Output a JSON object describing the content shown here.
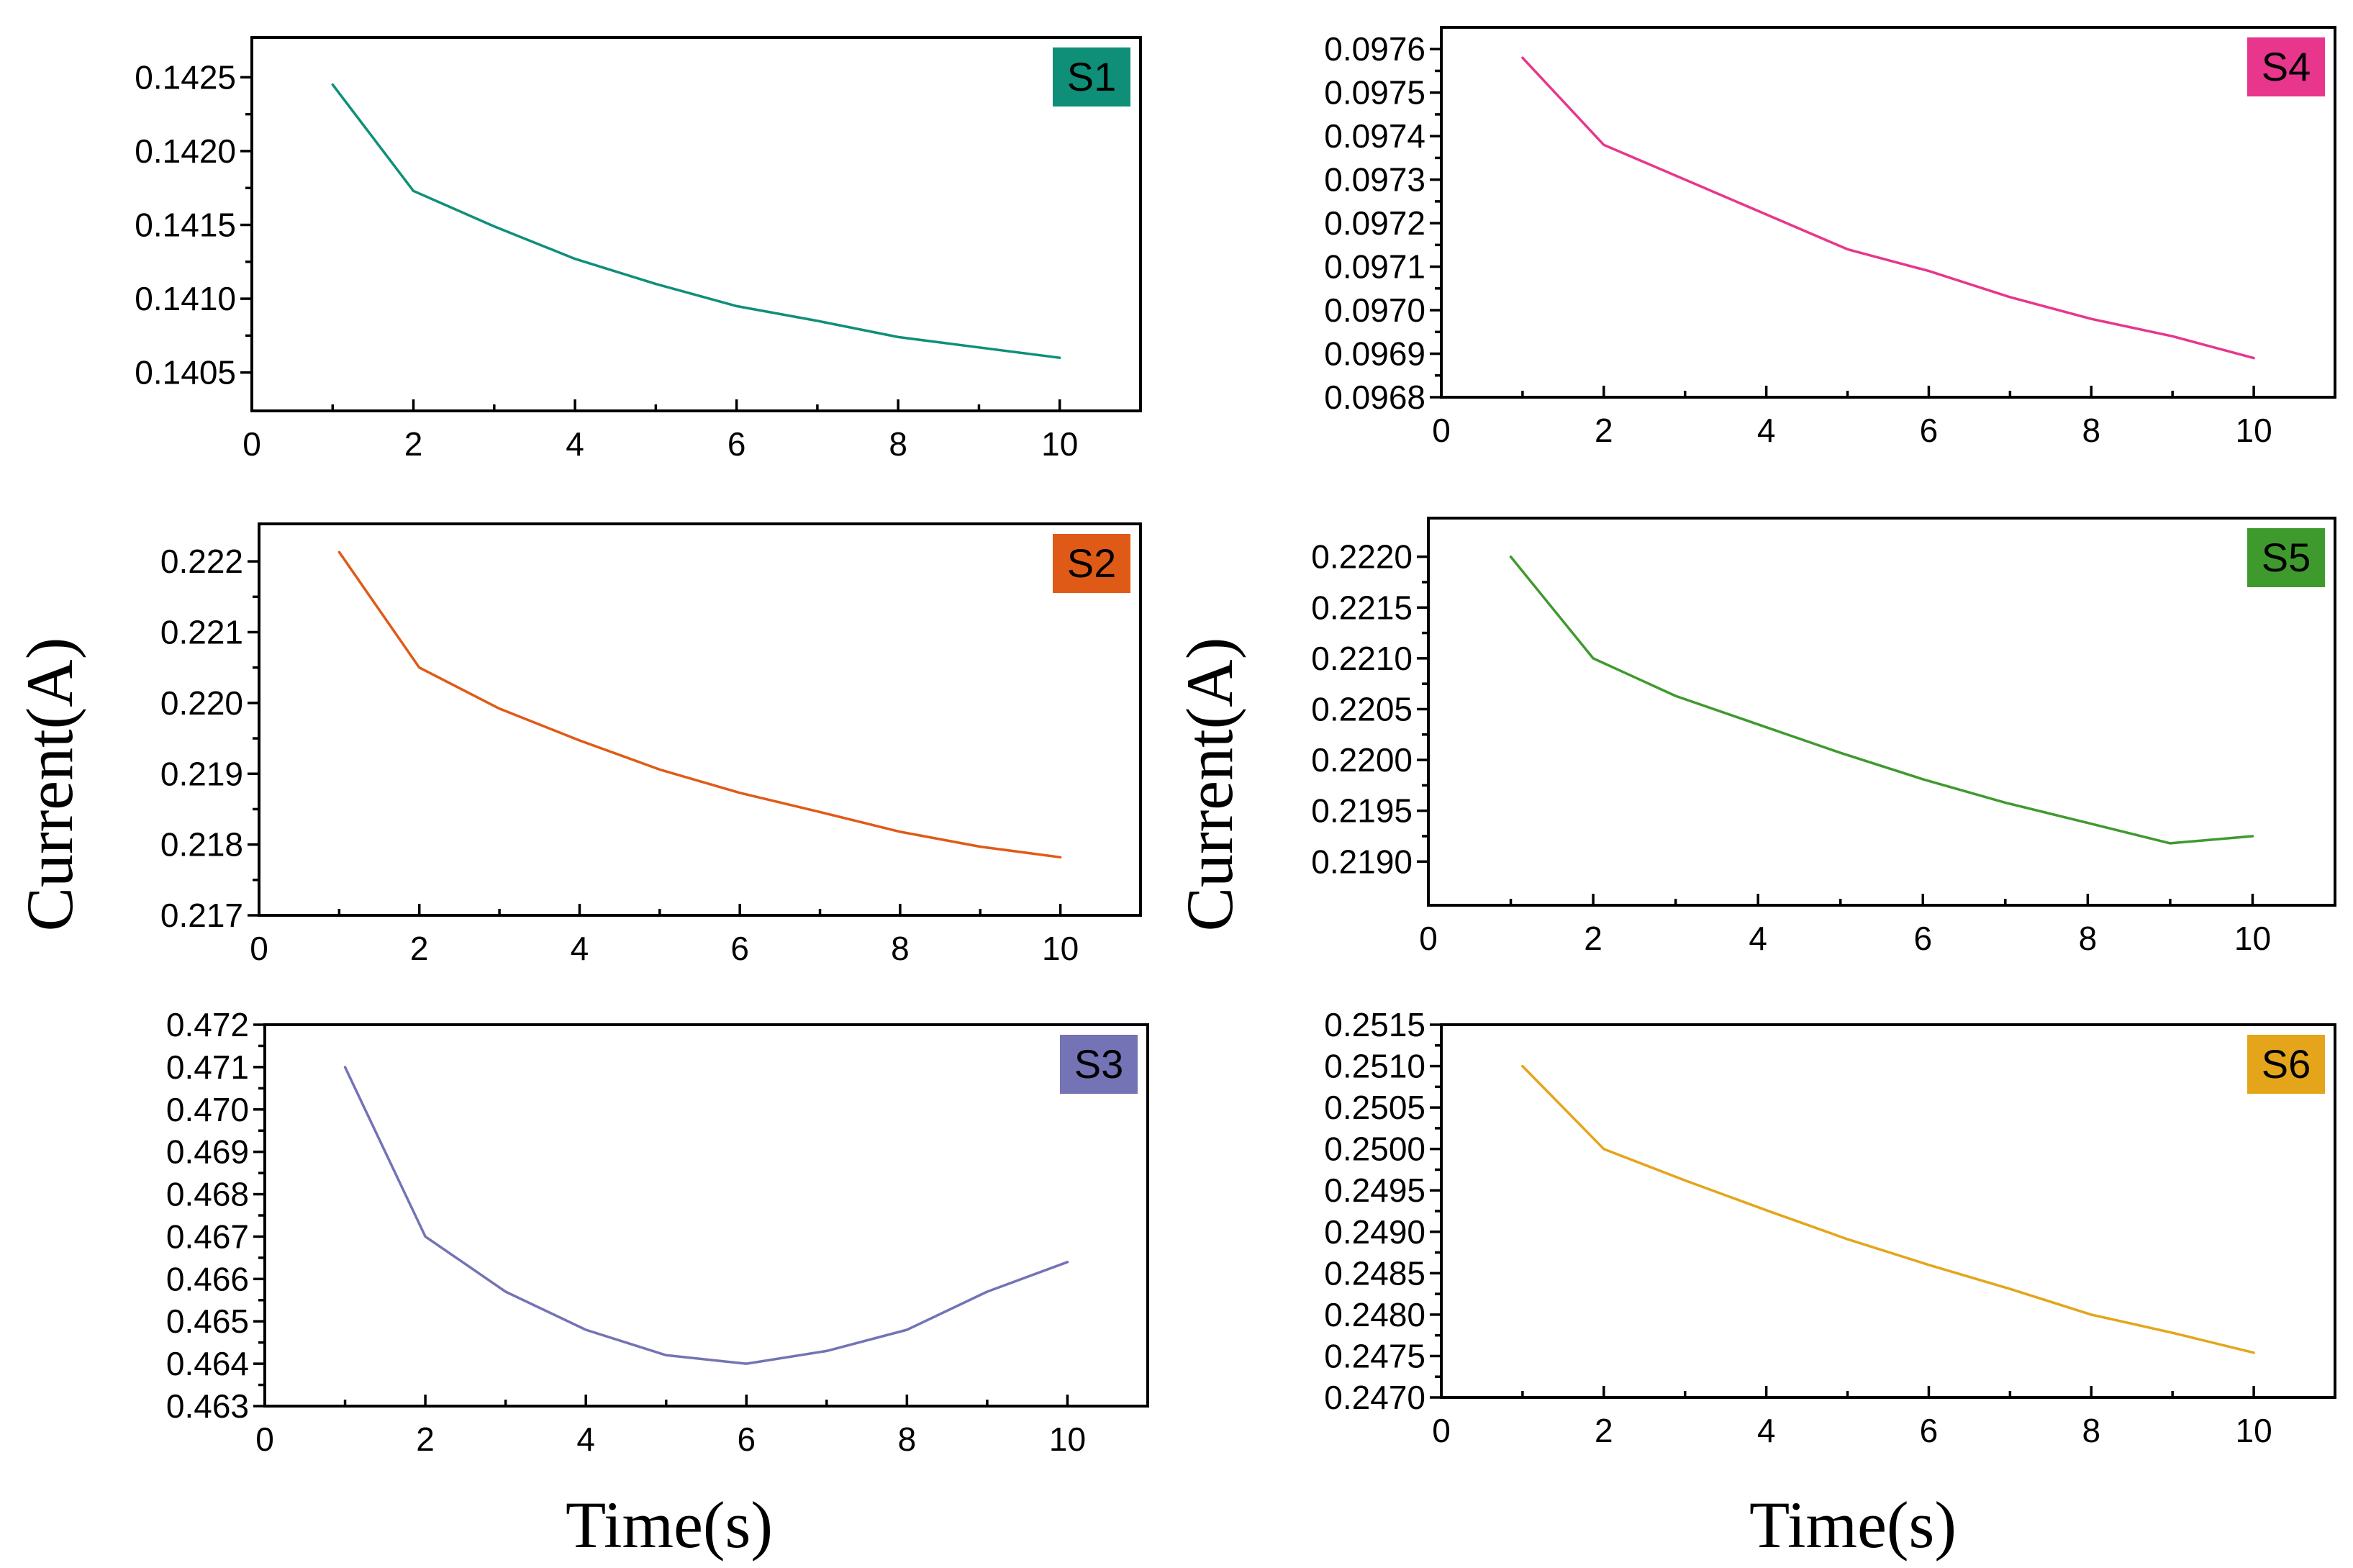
{
  "figure": {
    "left_ylabel": "Current(A)",
    "right_ylabel": "Current(A)",
    "left_xlabel": "Time(s)",
    "right_xlabel": "Time(s)"
  },
  "chart_data": [
    {
      "id": "S1",
      "label": "S1",
      "type": "line",
      "color": "#0f8f78",
      "x": [
        1,
        2,
        3,
        4,
        5,
        6,
        7,
        8,
        9,
        10
      ],
      "values": [
        0.14245,
        0.14173,
        0.14149,
        0.14127,
        0.1411,
        0.14095,
        0.14085,
        0.14074,
        0.14067,
        0.1406
      ],
      "xlim": [
        0,
        11
      ],
      "ylim": [
        0.14024,
        0.14277
      ],
      "xticks": [
        0,
        2,
        4,
        6,
        8,
        10
      ],
      "xtick_labels": [
        "0",
        "2",
        "4",
        "6",
        "8",
        "10"
      ],
      "yticks": [
        0.1405,
        0.141,
        0.1415,
        0.142,
        0.1425
      ],
      "ytick_labels": [
        "0.1405",
        "0.1410",
        "0.1415",
        "0.1420",
        "0.1425"
      ],
      "xlabel": "Time(s)",
      "ylabel": "Current(A)"
    },
    {
      "id": "S2",
      "label": "S2",
      "type": "line",
      "color": "#e05a17",
      "x": [
        1,
        2,
        3,
        4,
        5,
        6,
        7,
        8,
        9,
        10
      ],
      "values": [
        0.22213,
        0.2205,
        0.21992,
        0.21947,
        0.21906,
        0.21873,
        0.21846,
        0.21818,
        0.21797,
        0.21782
      ],
      "xlim": [
        0,
        11
      ],
      "ylim": [
        0.217,
        0.22253
      ],
      "xticks": [
        0,
        2,
        4,
        6,
        8,
        10
      ],
      "xtick_labels": [
        "0",
        "2",
        "4",
        "6",
        "8",
        "10"
      ],
      "yticks": [
        0.217,
        0.218,
        0.219,
        0.22,
        0.221,
        0.222
      ],
      "ytick_labels": [
        "0.217",
        "0.218",
        "0.219",
        "0.220",
        "0.221",
        "0.222"
      ],
      "xlabel": "Time(s)",
      "ylabel": "Current(A)"
    },
    {
      "id": "S3",
      "label": "S3",
      "type": "line",
      "color": "#7373b5",
      "x": [
        1,
        2,
        3,
        4,
        5,
        6,
        7,
        8,
        9,
        10
      ],
      "values": [
        0.471,
        0.467,
        0.4657,
        0.4648,
        0.4642,
        0.464,
        0.4643,
        0.4648,
        0.4657,
        0.4664
      ],
      "xlim": [
        0,
        11
      ],
      "ylim": [
        0.463,
        0.472
      ],
      "xticks": [
        0,
        2,
        4,
        6,
        8,
        10
      ],
      "xtick_labels": [
        "0",
        "2",
        "4",
        "6",
        "8",
        "10"
      ],
      "yticks": [
        0.463,
        0.464,
        0.465,
        0.466,
        0.467,
        0.468,
        0.469,
        0.47,
        0.471,
        0.472
      ],
      "ytick_labels": [
        "0.463",
        "0.464",
        "0.465",
        "0.466",
        "0.467",
        "0.468",
        "0.469",
        "0.470",
        "0.471",
        "0.472"
      ],
      "xlabel": "Time(s)",
      "ylabel": "Current(A)"
    },
    {
      "id": "S4",
      "label": "S4",
      "type": "line",
      "color": "#e8368c",
      "x": [
        1,
        2,
        3,
        4,
        5,
        6,
        7,
        8,
        9,
        10
      ],
      "values": [
        0.09758,
        0.09738,
        0.0973,
        0.09722,
        0.09714,
        0.09709,
        0.09703,
        0.09698,
        0.09694,
        0.09689
      ],
      "xlim": [
        0,
        11
      ],
      "ylim": [
        0.0968,
        0.09765
      ],
      "xticks": [
        0,
        2,
        4,
        6,
        8,
        10
      ],
      "xtick_labels": [
        "0",
        "2",
        "4",
        "6",
        "8",
        "10"
      ],
      "yticks": [
        0.0968,
        0.0969,
        0.097,
        0.0971,
        0.0972,
        0.0973,
        0.0974,
        0.0975,
        0.0976
      ],
      "ytick_labels": [
        "0.0968",
        "0.0969",
        "0.0970",
        "0.0971",
        "0.0972",
        "0.0973",
        "0.0974",
        "0.0975",
        "0.0976"
      ],
      "xlabel": "Time(s)",
      "ylabel": "Current(A)"
    },
    {
      "id": "S5",
      "label": "S5",
      "type": "line",
      "color": "#3f9a2e",
      "x": [
        1,
        2,
        3,
        4,
        5,
        6,
        7,
        8,
        9,
        10
      ],
      "values": [
        0.222,
        0.221,
        0.22063,
        0.22035,
        0.22007,
        0.21981,
        0.21958,
        0.21938,
        0.21918,
        0.21925
      ],
      "xlim": [
        0,
        11
      ],
      "ylim": [
        0.21857,
        0.22238
      ],
      "xticks": [
        0,
        2,
        4,
        6,
        8,
        10
      ],
      "xtick_labels": [
        "0",
        "2",
        "4",
        "6",
        "8",
        "10"
      ],
      "yticks": [
        0.219,
        0.2195,
        0.22,
        0.2205,
        0.221,
        0.2215,
        0.222
      ],
      "ytick_labels": [
        "0.2190",
        "0.2195",
        "0.2200",
        "0.2205",
        "0.2210",
        "0.2215",
        "0.2220"
      ],
      "xlabel": "Time(s)",
      "ylabel": "Current(A)"
    },
    {
      "id": "S6",
      "label": "S6",
      "type": "line",
      "color": "#e4a51a",
      "x": [
        1,
        2,
        3,
        4,
        5,
        6,
        7,
        8,
        9,
        10
      ],
      "values": [
        0.251,
        0.25,
        0.24962,
        0.24926,
        0.24891,
        0.2486,
        0.24831,
        0.248,
        0.24778,
        0.24754
      ],
      "xlim": [
        0,
        11
      ],
      "ylim": [
        0.247,
        0.2515
      ],
      "xticks": [
        0,
        2,
        4,
        6,
        8,
        10
      ],
      "xtick_labels": [
        "0",
        "2",
        "4",
        "6",
        "8",
        "10"
      ],
      "yticks": [
        0.247,
        0.2475,
        0.248,
        0.2485,
        0.249,
        0.2495,
        0.25,
        0.2505,
        0.251,
        0.2515
      ],
      "ytick_labels": [
        "0.2470",
        "0.2475",
        "0.2480",
        "0.2485",
        "0.2490",
        "0.2495",
        "0.2500",
        "0.2505",
        "0.2510",
        "0.2515"
      ],
      "xlabel": "Time(s)",
      "ylabel": "Current(A)"
    }
  ]
}
